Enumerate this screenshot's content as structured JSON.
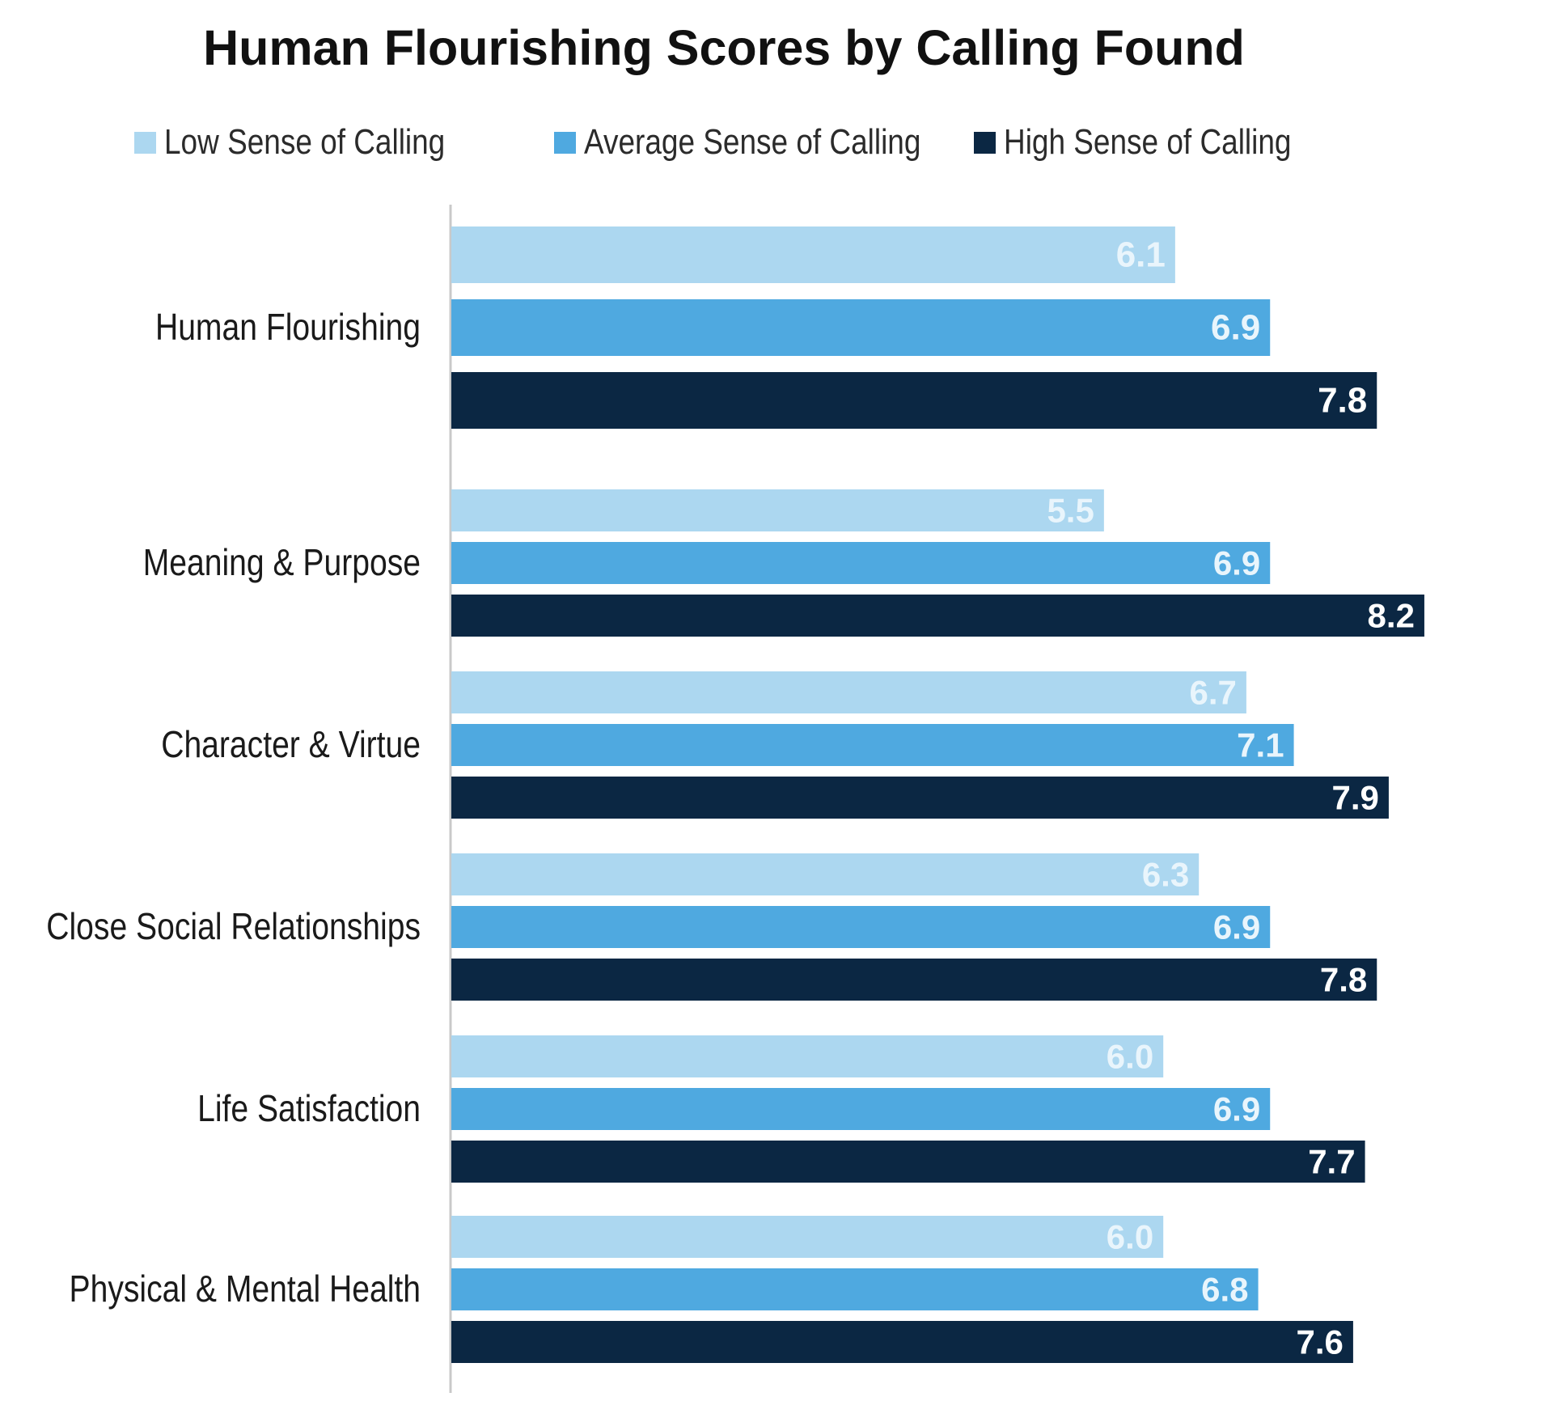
{
  "chart_data": {
    "type": "bar",
    "orientation": "horizontal",
    "title": "Human Flourishing Scores by Calling Found",
    "categories": [
      "Human Flourishing",
      "Meaning & Purpose",
      "Character & Virtue",
      "Close Social Relationships",
      "Life Satisfaction",
      "Physical & Mental Health"
    ],
    "series": [
      {
        "name": "Low Sense of Calling",
        "color": "#acd7f0",
        "values": [
          6.1,
          5.5,
          6.7,
          6.3,
          6.0,
          6.0
        ]
      },
      {
        "name": "Average Sense of Calling",
        "color": "#4fa9e0",
        "values": [
          6.9,
          6.9,
          7.1,
          6.9,
          6.9,
          6.8
        ]
      },
      {
        "name": "High Sense of Calling",
        "color": "#0b2743",
        "values": [
          7.8,
          8.2,
          7.9,
          7.8,
          7.7,
          7.6
        ]
      }
    ],
    "value_labels": [
      [
        "6.1",
        "6.9",
        "7.8"
      ],
      [
        "5.5",
        "6.9",
        "8.2"
      ],
      [
        "6.7",
        "7.1",
        "7.9"
      ],
      [
        "6.3",
        "6.9",
        "7.8"
      ],
      [
        "6.0",
        "6.9",
        "7.7"
      ],
      [
        "6.0",
        "6.8",
        "7.6"
      ]
    ],
    "xlim": [
      0,
      8.2
    ],
    "xlabel": "",
    "ylabel": "",
    "grid": false,
    "legend": "top",
    "data_labels": "inside-end"
  }
}
